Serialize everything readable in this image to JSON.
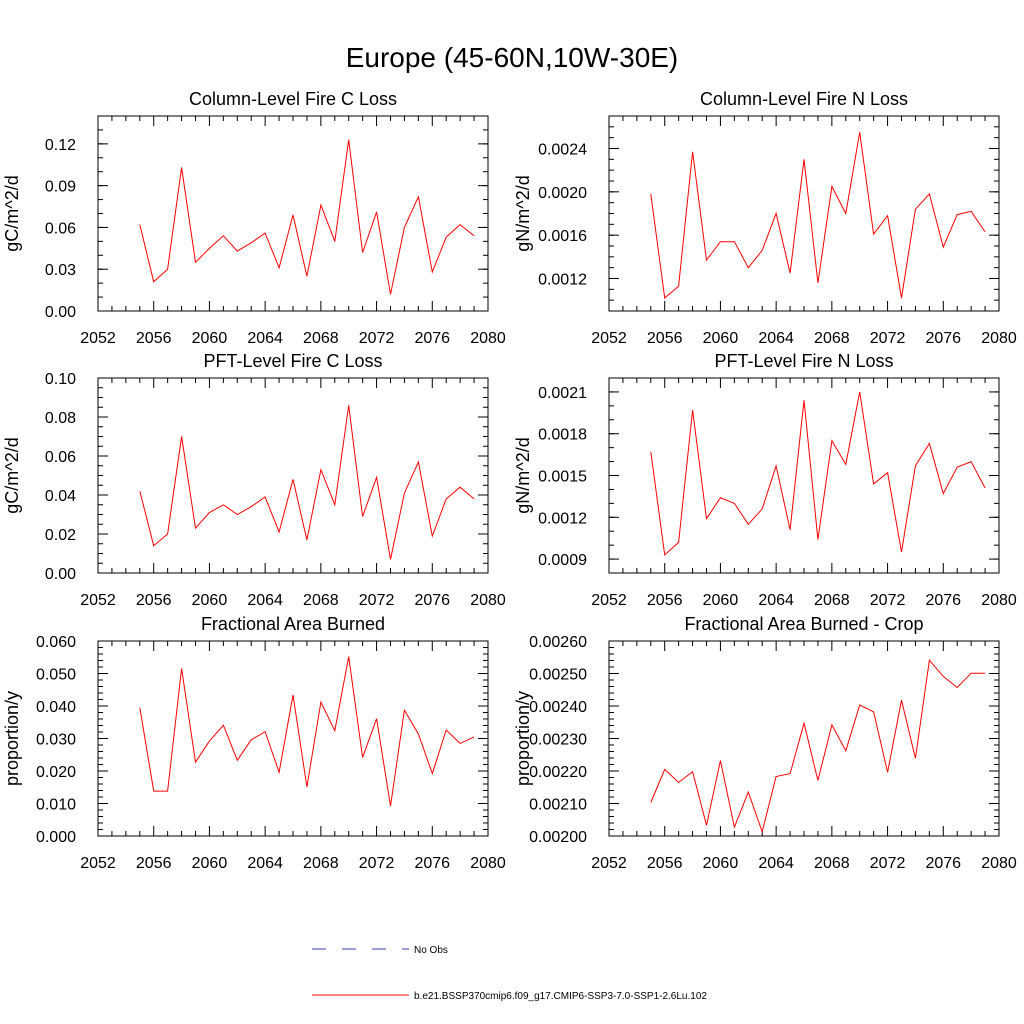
{
  "title": "Europe (45-60N,10W-30E)",
  "legend": {
    "obs_label": "No Obs",
    "model_label": "b.e21.BSSP370cmip6.f09_g17.CMIP6-SSP3-7.0-SSP1-2.6Lu.102",
    "model_color": "#ff0000",
    "obs_color": "#3b3bb0"
  },
  "chart_data": [
    {
      "type": "line",
      "title": "Column-Level Fire C Loss",
      "ylabel": "gC/m^2/d",
      "xlim": [
        2052,
        2080
      ],
      "ylim": [
        0,
        0.14
      ],
      "xticks": [
        2052,
        2056,
        2060,
        2064,
        2068,
        2072,
        2076,
        2080
      ],
      "xticklabels": [
        "2052",
        "2056",
        "2060",
        "2064",
        "2068",
        "2072",
        "2076",
        "2080"
      ],
      "yticks": [
        0,
        0.03,
        0.06,
        0.09,
        0.12
      ],
      "yticklabels": [
        "0.00",
        "0.03",
        "0.06",
        "0.09",
        "0.12"
      ],
      "yminor": 0.01,
      "x": [
        2055,
        2056,
        2057,
        2058,
        2059,
        2060,
        2061,
        2062,
        2063,
        2064,
        2065,
        2066,
        2067,
        2068,
        2069,
        2070,
        2071,
        2072,
        2073,
        2074,
        2075,
        2076,
        2077,
        2078,
        2079
      ],
      "series": [
        {
          "color": "#ff0000",
          "values": [
            0.062,
            0.021,
            0.03,
            0.103,
            0.035,
            0.045,
            0.054,
            0.043,
            0.049,
            0.056,
            0.031,
            0.069,
            0.025,
            0.076,
            0.05,
            0.123,
            0.042,
            0.071,
            0.012,
            0.06,
            0.082,
            0.028,
            0.053,
            0.062,
            0.054
          ]
        }
      ]
    },
    {
      "type": "line",
      "title": "Column-Level Fire N Loss",
      "ylabel": "gN/m^2/d",
      "xlim": [
        2052,
        2080
      ],
      "ylim": [
        0.0009,
        0.0027
      ],
      "xticks": [
        2052,
        2056,
        2060,
        2064,
        2068,
        2072,
        2076,
        2080
      ],
      "xticklabels": [
        "2052",
        "2056",
        "2060",
        "2064",
        "2068",
        "2072",
        "2076",
        "2080"
      ],
      "yticks": [
        0.0012,
        0.0016,
        0.002,
        0.0024
      ],
      "yticklabels": [
        "0.0012",
        "0.0016",
        "0.0020",
        "0.0024"
      ],
      "yminor": 0.0001,
      "x": [
        2055,
        2056,
        2057,
        2058,
        2059,
        2060,
        2061,
        2062,
        2063,
        2064,
        2065,
        2066,
        2067,
        2068,
        2069,
        2070,
        2071,
        2072,
        2073,
        2074,
        2075,
        2076,
        2077,
        2078,
        2079
      ],
      "series": [
        {
          "color": "#ff0000",
          "values": [
            0.00198,
            0.00102,
            0.00113,
            0.00237,
            0.00137,
            0.00154,
            0.00154,
            0.0013,
            0.00146,
            0.0018,
            0.00125,
            0.0023,
            0.00116,
            0.00205,
            0.0018,
            0.00255,
            0.00161,
            0.00178,
            0.00102,
            0.00184,
            0.00198,
            0.00149,
            0.00179,
            0.00182,
            0.00163
          ]
        }
      ]
    },
    {
      "type": "line",
      "title": "PFT-Level Fire C Loss",
      "ylabel": "gC/m^2/d",
      "xlim": [
        2052,
        2080
      ],
      "ylim": [
        0,
        0.1
      ],
      "xticks": [
        2052,
        2056,
        2060,
        2064,
        2068,
        2072,
        2076,
        2080
      ],
      "xticklabels": [
        "2052",
        "2056",
        "2060",
        "2064",
        "2068",
        "2072",
        "2076",
        "2080"
      ],
      "yticks": [
        0,
        0.02,
        0.04,
        0.06,
        0.08,
        0.1
      ],
      "yticklabels": [
        "0.00",
        "0.02",
        "0.04",
        "0.06",
        "0.08",
        "0.10"
      ],
      "yminor": 0.005,
      "x": [
        2055,
        2056,
        2057,
        2058,
        2059,
        2060,
        2061,
        2062,
        2063,
        2064,
        2065,
        2066,
        2067,
        2068,
        2069,
        2070,
        2071,
        2072,
        2073,
        2074,
        2075,
        2076,
        2077,
        2078,
        2079
      ],
      "series": [
        {
          "color": "#ff0000",
          "values": [
            0.042,
            0.014,
            0.02,
            0.07,
            0.023,
            0.031,
            0.035,
            0.03,
            0.034,
            0.039,
            0.021,
            0.048,
            0.017,
            0.053,
            0.035,
            0.086,
            0.029,
            0.049,
            0.007,
            0.041,
            0.057,
            0.019,
            0.038,
            0.044,
            0.038
          ]
        }
      ]
    },
    {
      "type": "line",
      "title": "PFT-Level Fire N Loss",
      "ylabel": "gN/m^2/d",
      "xlim": [
        2052,
        2080
      ],
      "ylim": [
        0.0008,
        0.0022
      ],
      "xticks": [
        2052,
        2056,
        2060,
        2064,
        2068,
        2072,
        2076,
        2080
      ],
      "xticklabels": [
        "2052",
        "2056",
        "2060",
        "2064",
        "2068",
        "2072",
        "2076",
        "2080"
      ],
      "yticks": [
        0.0009,
        0.0012,
        0.0015,
        0.0018,
        0.0021
      ],
      "yticklabels": [
        "0.0009",
        "0.0012",
        "0.0015",
        "0.0018",
        "0.0021"
      ],
      "yminor": 0.0001,
      "x": [
        2055,
        2056,
        2057,
        2058,
        2059,
        2060,
        2061,
        2062,
        2063,
        2064,
        2065,
        2066,
        2067,
        2068,
        2069,
        2070,
        2071,
        2072,
        2073,
        2074,
        2075,
        2076,
        2077,
        2078,
        2079
      ],
      "series": [
        {
          "color": "#ff0000",
          "values": [
            0.00167,
            0.00093,
            0.00102,
            0.00197,
            0.00119,
            0.00134,
            0.0013,
            0.00115,
            0.00126,
            0.00157,
            0.00111,
            0.00204,
            0.00104,
            0.00175,
            0.00158,
            0.0021,
            0.00144,
            0.00152,
            0.00095,
            0.00157,
            0.00173,
            0.00137,
            0.00156,
            0.0016,
            0.00141
          ]
        }
      ]
    },
    {
      "type": "line",
      "title": "Fractional Area Burned",
      "ylabel": "proportion/y",
      "xlim": [
        2052,
        2080
      ],
      "ylim": [
        0,
        0.06
      ],
      "xticks": [
        2052,
        2056,
        2060,
        2064,
        2068,
        2072,
        2076,
        2080
      ],
      "xticklabels": [
        "2052",
        "2056",
        "2060",
        "2064",
        "2068",
        "2072",
        "2076",
        "2080"
      ],
      "yticks": [
        0,
        0.01,
        0.02,
        0.03,
        0.04,
        0.05,
        0.06
      ],
      "yticklabels": [
        "0.000",
        "0.010",
        "0.020",
        "0.030",
        "0.040",
        "0.050",
        "0.060"
      ],
      "yminor": 0.002,
      "x": [
        2055,
        2056,
        2057,
        2058,
        2059,
        2060,
        2061,
        2062,
        2063,
        2064,
        2065,
        2066,
        2067,
        2068,
        2069,
        2070,
        2071,
        2072,
        2073,
        2074,
        2075,
        2076,
        2077,
        2078,
        2079
      ],
      "series": [
        {
          "color": "#ff0000",
          "values": [
            0.0395,
            0.0138,
            0.0138,
            0.0515,
            0.0227,
            0.0292,
            0.0341,
            0.0233,
            0.0296,
            0.0321,
            0.0196,
            0.0434,
            0.0151,
            0.0412,
            0.0324,
            0.0552,
            0.0242,
            0.0361,
            0.0092,
            0.0387,
            0.0314,
            0.0192,
            0.0326,
            0.0285,
            0.0305
          ]
        }
      ]
    },
    {
      "type": "line",
      "title": "Fractional Area Burned - Crop",
      "ylabel": "proportion/y",
      "xlim": [
        2052,
        2080
      ],
      "ylim": [
        0.002,
        0.0026
      ],
      "xticks": [
        2052,
        2056,
        2060,
        2064,
        2068,
        2072,
        2076,
        2080
      ],
      "xticklabels": [
        "2052",
        "2056",
        "2060",
        "2064",
        "2068",
        "2072",
        "2076",
        "2080"
      ],
      "yticks": [
        0.002,
        0.0021,
        0.0022,
        0.0023,
        0.0024,
        0.0025,
        0.0026
      ],
      "yticklabels": [
        "0.00200",
        "0.00210",
        "0.00220",
        "0.00230",
        "0.00240",
        "0.00250",
        "0.00260"
      ],
      "yminor": 2e-05,
      "x": [
        2055,
        2056,
        2057,
        2058,
        2059,
        2060,
        2061,
        2062,
        2063,
        2064,
        2065,
        2066,
        2067,
        2068,
        2069,
        2070,
        2071,
        2072,
        2073,
        2074,
        2075,
        2076,
        2077,
        2078,
        2079
      ],
      "series": [
        {
          "color": "#ff0000",
          "values": [
            0.002103,
            0.002205,
            0.002165,
            0.002198,
            0.002033,
            0.002232,
            0.002027,
            0.002135,
            0.002013,
            0.002183,
            0.002192,
            0.002347,
            0.002171,
            0.002342,
            0.002262,
            0.002403,
            0.002382,
            0.002196,
            0.002418,
            0.002239,
            0.002541,
            0.002491,
            0.002457,
            0.002501,
            0.002501
          ]
        }
      ]
    }
  ]
}
